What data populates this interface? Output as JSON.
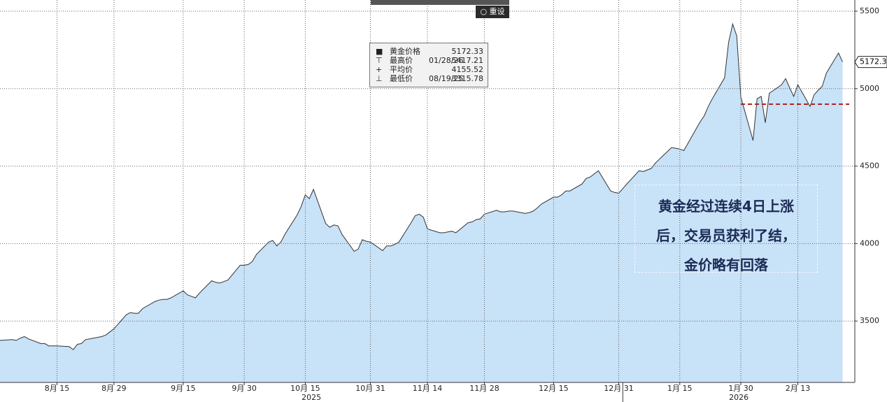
{
  "chart_data": {
    "type": "area",
    "toolbar": {
      "reset": "重设"
    },
    "x": [
      "2025-08-01",
      "2025-08-04",
      "2025-08-05",
      "2025-08-06",
      "2025-08-07",
      "2025-08-08",
      "2025-08-11",
      "2025-08-12",
      "2025-08-13",
      "2025-08-14",
      "2025-08-15",
      "2025-08-18",
      "2025-08-19",
      "2025-08-20",
      "2025-08-21",
      "2025-08-22",
      "2025-08-25",
      "2025-08-26",
      "2025-08-27",
      "2025-08-28",
      "2025-08-29",
      "2025-09-01",
      "2025-09-02",
      "2025-09-03",
      "2025-09-04",
      "2025-09-05",
      "2025-09-08",
      "2025-09-09",
      "2025-09-10",
      "2025-09-11",
      "2025-09-12",
      "2025-09-15",
      "2025-09-16",
      "2025-09-17",
      "2025-09-18",
      "2025-09-19",
      "2025-09-22",
      "2025-09-23",
      "2025-09-24",
      "2025-09-25",
      "2025-09-26",
      "2025-09-29",
      "2025-09-30",
      "2025-10-01",
      "2025-10-02",
      "2025-10-03",
      "2025-10-06",
      "2025-10-07",
      "2025-10-08",
      "2025-10-09",
      "2025-10-10",
      "2025-10-13",
      "2025-10-14",
      "2025-10-15",
      "2025-10-16",
      "2025-10-17",
      "2025-10-20",
      "2025-10-21",
      "2025-10-22",
      "2025-10-23",
      "2025-10-24",
      "2025-10-27",
      "2025-10-28",
      "2025-10-29",
      "2025-10-30",
      "2025-10-31",
      "2025-11-03",
      "2025-11-04",
      "2025-11-05",
      "2025-11-06",
      "2025-11-07",
      "2025-11-10",
      "2025-11-11",
      "2025-11-12",
      "2025-11-13",
      "2025-11-14",
      "2025-11-17",
      "2025-11-18",
      "2025-11-19",
      "2025-11-20",
      "2025-11-21",
      "2025-11-24",
      "2025-11-25",
      "2025-11-26",
      "2025-11-27",
      "2025-11-28",
      "2025-12-01",
      "2025-12-02",
      "2025-12-03",
      "2025-12-04",
      "2025-12-05",
      "2025-12-08",
      "2025-12-09",
      "2025-12-10",
      "2025-12-11",
      "2025-12-12",
      "2025-12-15",
      "2025-12-16",
      "2025-12-17",
      "2025-12-18",
      "2025-12-19",
      "2025-12-22",
      "2025-12-23",
      "2025-12-24",
      "2025-12-26",
      "2025-12-29",
      "2025-12-30",
      "2025-12-31",
      "2026-01-02",
      "2026-01-05",
      "2026-01-06",
      "2026-01-07",
      "2026-01-08",
      "2026-01-09",
      "2026-01-12",
      "2026-01-13",
      "2026-01-14",
      "2026-01-15",
      "2026-01-16",
      "2026-01-19",
      "2026-01-20",
      "2026-01-21",
      "2026-01-22",
      "2026-01-23",
      "2026-01-26",
      "2026-01-27",
      "2026-01-28",
      "2026-01-29",
      "2026-01-30",
      "2026-02-02",
      "2026-02-03",
      "2026-02-04",
      "2026-02-05",
      "2026-02-06",
      "2026-02-09",
      "2026-02-10",
      "2026-02-11",
      "2026-02-12",
      "2026-02-13",
      "2026-02-16",
      "2026-02-17",
      "2026-02-18",
      "2026-02-19",
      "2026-02-20",
      "2026-02-23",
      "2026-02-24"
    ],
    "series": [
      {
        "name": "黄金价格",
        "color": "#c8e2f8",
        "line_color": "#333333",
        "values": [
          3375,
          3380,
          3375,
          3390,
          3400,
          3385,
          3355,
          3355,
          3340,
          3340,
          3340,
          3335,
          3315.78,
          3350,
          3355,
          3380,
          3395,
          3400,
          3410,
          3430,
          3450,
          3540,
          3555,
          3550,
          3550,
          3580,
          3625,
          3635,
          3640,
          3640,
          3650,
          3695,
          3670,
          3660,
          3650,
          3680,
          3760,
          3750,
          3745,
          3755,
          3765,
          3860,
          3860,
          3865,
          3885,
          3930,
          4010,
          4020,
          3985,
          4010,
          4060,
          4185,
          4240,
          4315,
          4290,
          4350,
          4130,
          4105,
          4120,
          4115,
          4060,
          3950,
          3965,
          4025,
          4015,
          4010,
          3955,
          3985,
          3985,
          3995,
          4010,
          4135,
          4180,
          4190,
          4170,
          4095,
          4070,
          4070,
          4075,
          4080,
          4070,
          4135,
          4140,
          4155,
          4160,
          4190,
          4215,
          4205,
          4205,
          4210,
          4210,
          4195,
          4200,
          4210,
          4230,
          4255,
          4300,
          4300,
          4315,
          4340,
          4340,
          4385,
          4420,
          4430,
          4470,
          4340,
          4330,
          4325,
          4385,
          4470,
          4465,
          4475,
          4485,
          4520,
          4595,
          4620,
          4615,
          4610,
          4600,
          4740,
          4785,
          4825,
          4885,
          4935,
          5070,
          5300,
          5417.21,
          5340,
          4945,
          4665,
          4935,
          4950,
          4780,
          4970,
          5025,
          5065,
          5005,
          4950,
          5025,
          4885,
          4960,
          4990,
          5015,
          5100,
          5230,
          5172.33
        ]
      }
    ],
    "stats": [
      {
        "label": "黄金价格",
        "value": 5172.33
      },
      {
        "label": "最高价",
        "date": "01/28/26",
        "value": 5417.21
      },
      {
        "label": "平均价",
        "value": 4155.52
      },
      {
        "label": "最低价",
        "date": "08/19/25",
        "value": 3315.78
      }
    ],
    "ref_line": {
      "value": 4900,
      "from": "2026-01-30",
      "color": "#b22222"
    },
    "annotation": [
      "黄金经过连续4日上涨",
      "后，交易员获利了结，",
      "金价略有回落"
    ],
    "xlim": [
      "2025-08-01",
      "2026-02-27"
    ],
    "xticks": [
      {
        "value": "2025-08-15",
        "label": "8月 15"
      },
      {
        "value": "2025-08-29",
        "label": "8月 29"
      },
      {
        "value": "2025-09-15",
        "label": "9月 15"
      },
      {
        "value": "2025-09-30",
        "label": "9月 30"
      },
      {
        "value": "2025-10-15",
        "label": "10月 15"
      },
      {
        "value": "2025-10-31",
        "label": "10月 31"
      },
      {
        "value": "2025-11-14",
        "label": "11月 14"
      },
      {
        "value": "2025-11-28",
        "label": "11月 28"
      },
      {
        "value": "2025-12-15",
        "label": "12月 15"
      },
      {
        "value": "2025-12-31",
        "label": "12月 31"
      },
      {
        "value": "2026-01-15",
        "label": "1月 15"
      },
      {
        "value": "2026-01-30",
        "label": "1月 30"
      },
      {
        "value": "2026-02-13",
        "label": "2月 13"
      }
    ],
    "years": [
      2025,
      2026
    ],
    "ylim": [
      3104,
      5572
    ],
    "yticks": [
      3500,
      4000,
      4500,
      5000,
      5500
    ],
    "grid": true
  }
}
